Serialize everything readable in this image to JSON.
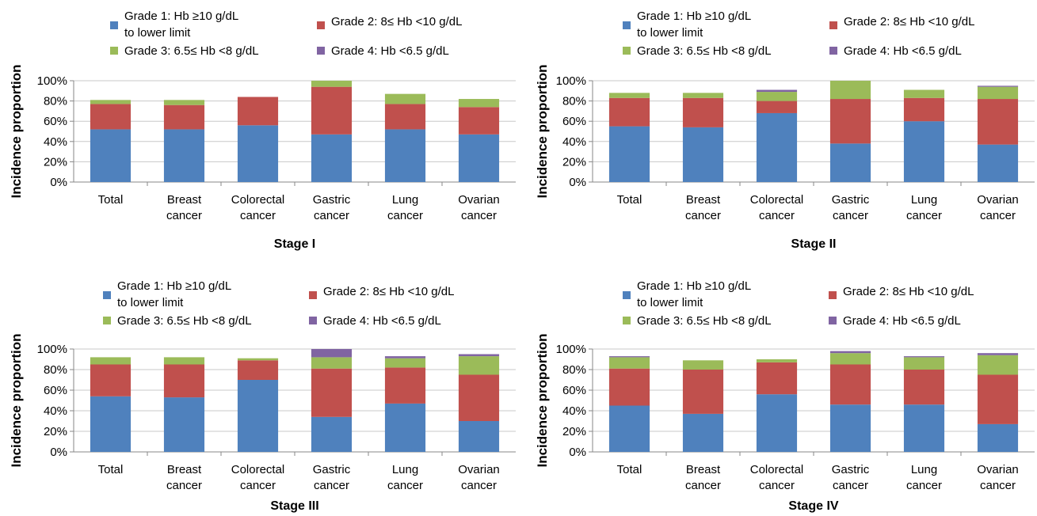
{
  "chart_data": [
    {
      "type": "bar",
      "stacked": true,
      "title": "Stage I",
      "ylabel": "Incidence proportion",
      "ylim": [
        0,
        100
      ],
      "yticks": [
        "0%",
        "20%",
        "40%",
        "60%",
        "80%",
        "100%"
      ],
      "grid": true,
      "legend_position": "top",
      "categories": [
        [
          "Total"
        ],
        [
          "Breast",
          "cancer"
        ],
        [
          "Colorectal",
          "cancer"
        ],
        [
          "Gastric",
          "cancer"
        ],
        [
          "Lung",
          "cancer"
        ],
        [
          "Ovarian",
          "cancer"
        ]
      ],
      "series": [
        {
          "name": "Grade 1: Hb ≥10 g/dL to lower limit",
          "values": [
            52,
            52,
            56,
            47,
            52,
            47
          ]
        },
        {
          "name": "Grade 2: 8≤ Hb <10 g/dL",
          "values": [
            25,
            24,
            28,
            47,
            25,
            27
          ]
        },
        {
          "name": "Grade 3: 6.5≤ Hb <8 g/dL",
          "values": [
            4,
            5,
            0,
            6,
            10,
            8
          ]
        },
        {
          "name": "Grade 4: Hb <6.5 g/dL",
          "values": [
            0,
            0,
            0,
            0,
            0,
            0
          ]
        }
      ]
    },
    {
      "type": "bar",
      "stacked": true,
      "title": "Stage II",
      "ylabel": "Incidence proportion",
      "ylim": [
        0,
        100
      ],
      "yticks": [
        "0%",
        "20%",
        "40%",
        "60%",
        "80%",
        "100%"
      ],
      "grid": true,
      "legend_position": "top",
      "categories": [
        [
          "Total"
        ],
        [
          "Breast",
          "cancer"
        ],
        [
          "Colorectal",
          "cancer"
        ],
        [
          "Gastric",
          "cancer"
        ],
        [
          "Lung",
          "cancer"
        ],
        [
          "Ovarian",
          "cancer"
        ]
      ],
      "series": [
        {
          "name": "Grade 1: Hb ≥10 g/dL to lower limit",
          "values": [
            55,
            54,
            68,
            38,
            60,
            37
          ]
        },
        {
          "name": "Grade 2: 8≤ Hb <10 g/dL",
          "values": [
            28,
            29,
            12,
            44,
            23,
            45
          ]
        },
        {
          "name": "Grade 3: 6.5≤ Hb <8 g/dL",
          "values": [
            5,
            5,
            9,
            18,
            8,
            12
          ]
        },
        {
          "name": "Grade 4: Hb <6.5 g/dL",
          "values": [
            0,
            0,
            2,
            0,
            0,
            1
          ]
        }
      ]
    },
    {
      "type": "bar",
      "stacked": true,
      "title": "Stage III",
      "ylabel": "Incidence proportion",
      "ylim": [
        0,
        100
      ],
      "yticks": [
        "0%",
        "20%",
        "40%",
        "60%",
        "80%",
        "100%"
      ],
      "grid": true,
      "legend_position": "top",
      "categories": [
        [
          "Total"
        ],
        [
          "Breast",
          "cancer"
        ],
        [
          "Colorectal",
          "cancer"
        ],
        [
          "Gastric",
          "cancer"
        ],
        [
          "Lung",
          "cancer"
        ],
        [
          "Ovarian",
          "cancer"
        ]
      ],
      "series": [
        {
          "name": "Grade 1: Hb ≥10 g/dL to lower limit",
          "values": [
            54,
            53,
            70,
            34,
            47,
            30
          ]
        },
        {
          "name": "Grade 2: 8≤ Hb <10 g/dL",
          "values": [
            31,
            32,
            19,
            47,
            35,
            45
          ]
        },
        {
          "name": "Grade 3: 6.5≤ Hb <8 g/dL",
          "values": [
            7,
            7,
            2,
            11,
            9,
            18
          ]
        },
        {
          "name": "Grade 4: Hb <6.5 g/dL",
          "values": [
            0,
            0,
            0,
            8,
            2,
            2
          ]
        }
      ]
    },
    {
      "type": "bar",
      "stacked": true,
      "title": "Stage IV",
      "ylabel": "Incidence proportion",
      "ylim": [
        0,
        100
      ],
      "yticks": [
        "0%",
        "20%",
        "40%",
        "60%",
        "80%",
        "100%"
      ],
      "grid": true,
      "legend_position": "top",
      "categories": [
        [
          "Total"
        ],
        [
          "Breast",
          "cancer"
        ],
        [
          "Colorectal",
          "cancer"
        ],
        [
          "Gastric",
          "cancer"
        ],
        [
          "Lung",
          "cancer"
        ],
        [
          "Ovarian",
          "cancer"
        ]
      ],
      "series": [
        {
          "name": "Grade 1: Hb ≥10 g/dL to lower limit",
          "values": [
            45,
            37,
            56,
            46,
            46,
            27
          ]
        },
        {
          "name": "Grade 2: 8≤ Hb <10 g/dL",
          "values": [
            36,
            43,
            31,
            39,
            34,
            48
          ]
        },
        {
          "name": "Grade 3: 6.5≤ Hb <8 g/dL",
          "values": [
            11,
            9,
            3,
            11,
            12,
            19
          ]
        },
        {
          "name": "Grade 4: Hb <6.5 g/dL",
          "values": [
            1,
            0,
            0,
            2,
            1,
            2
          ]
        }
      ]
    }
  ],
  "legend": {
    "grade1_line1": "Grade 1: Hb ≥10 g/dL",
    "grade1_line2": "to lower limit",
    "grade2": "Grade 2: 8≤ Hb <10 g/dL",
    "grade3": "Grade 3: 6.5≤ Hb <8 g/dL",
    "grade4": "Grade 4: Hb <6.5 g/dL"
  },
  "colors": {
    "grade1": "#4f81bd",
    "grade2": "#c0504d",
    "grade3": "#9bbb59",
    "grade4": "#8064a2",
    "gridline": "#c8c8c8",
    "axis": "#878787",
    "text": "#000000"
  }
}
